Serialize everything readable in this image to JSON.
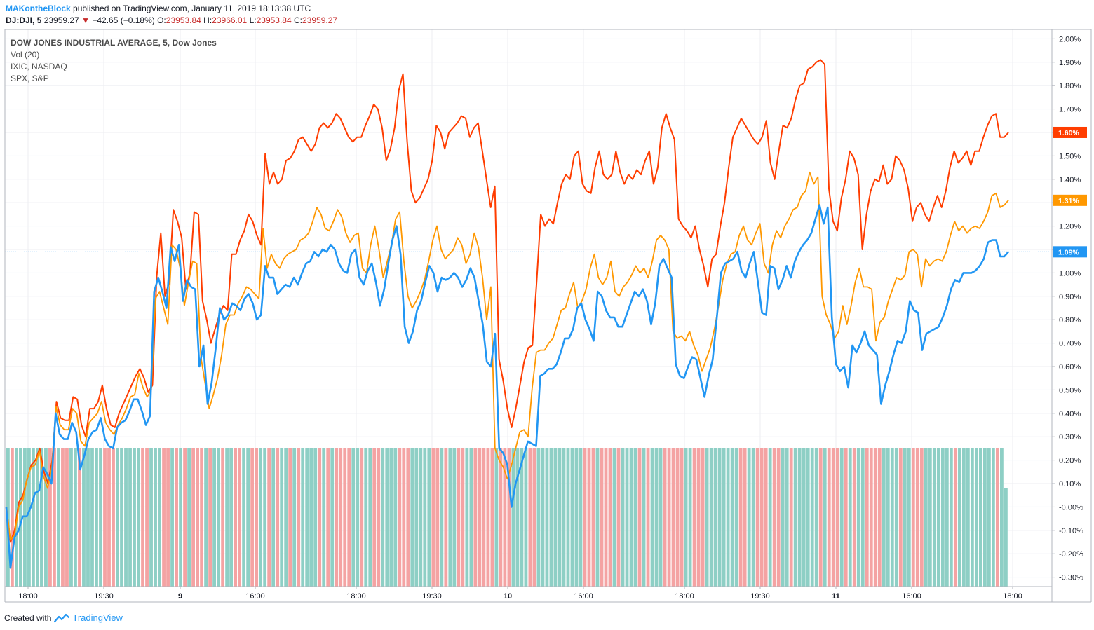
{
  "header": {
    "author": "MAKontheBlock",
    "published_text": "published on TradingView.com, January 11, 2019 18:13:38 UTC",
    "symbol": "DJ:DJI, 5",
    "last": "23959.27",
    "arrow": "▼",
    "change": "−42.65 (−0.18%)",
    "o_label": "O:",
    "o_value": "23953.84",
    "h_label": "H:",
    "h_value": "23966.01",
    "l_label": "L:",
    "l_value": "23953.84",
    "c_label": "C:",
    "c_value": "23959.27"
  },
  "legend": {
    "main": "DOW JONES INDUSTRIAL AVERAGE, 5, Dow Jones",
    "vol": "Vol (20)",
    "ixic": "IXIC, NASDAQ",
    "spx": "SPX, S&P"
  },
  "footer": {
    "created_with": "Created with",
    "brand": "TradingView"
  },
  "colors": {
    "dow": "#2196f3",
    "nasdaq": "#ff3d00",
    "spx": "#ff9800",
    "vol_up": "#8ecfc5",
    "vol_down": "#f4a3a3",
    "grid": "#eceef2",
    "axis": "#b2b5be"
  },
  "chart_data": {
    "type": "line",
    "y_unit": "%",
    "ylim": [
      -0.34,
      2.04
    ],
    "y_ticks": [
      "2.00%",
      "1.90%",
      "1.80%",
      "1.70%",
      "1.60%",
      "1.50%",
      "1.40%",
      "1.30%",
      "1.20%",
      "1.10%",
      "1.00%",
      "0.90%",
      "0.80%",
      "0.70%",
      "0.60%",
      "0.50%",
      "0.40%",
      "0.30%",
      "0.20%",
      "0.10%",
      "-0.00%",
      "-0.10%",
      "-0.20%",
      "-0.30%"
    ],
    "x_ticks": [
      {
        "label": "18:00",
        "bold": false
      },
      {
        "label": "19:30",
        "bold": false
      },
      {
        "label": "9",
        "bold": true
      },
      {
        "label": "16:00",
        "bold": false
      },
      {
        "label": "18:00",
        "bold": false
      },
      {
        "label": "19:30",
        "bold": false
      },
      {
        "label": "10",
        "bold": true
      },
      {
        "label": "16:00",
        "bold": false
      },
      {
        "label": "18:00",
        "bold": false
      },
      {
        "label": "19:30",
        "bold": false
      },
      {
        "label": "11",
        "bold": true
      },
      {
        "label": "16:00",
        "bold": false
      },
      {
        "label": "18:00",
        "bold": false
      }
    ],
    "grid": true,
    "price_labels": [
      {
        "series": "nasdaq",
        "text": "1.60%",
        "value": 1.6
      },
      {
        "series": "spx",
        "text": "1.31%",
        "value": 1.31
      },
      {
        "series": "dow",
        "text": "1.09%",
        "value": 1.09
      }
    ],
    "volume_bar_count": 238,
    "series": [
      {
        "name": "IXIC",
        "key": "nasdaq",
        "values": [
          0.0,
          -0.15,
          -0.1,
          0.02,
          0.05,
          0.12,
          0.18,
          0.2,
          0.25,
          0.15,
          0.1,
          0.2,
          0.45,
          0.38,
          0.37,
          0.37,
          0.47,
          0.46,
          0.35,
          0.3,
          0.42,
          0.42,
          0.45,
          0.52,
          0.42,
          0.35,
          0.34,
          0.4,
          0.44,
          0.48,
          0.52,
          0.56,
          0.59,
          0.55,
          0.49,
          0.52,
          0.98,
          1.17,
          0.9,
          0.96,
          1.27,
          1.22,
          1.15,
          0.93,
          1.0,
          1.26,
          1.25,
          0.88,
          0.8,
          0.7,
          0.76,
          0.82,
          0.86,
          0.84,
          1.08,
          1.08,
          1.14,
          1.18,
          1.25,
          1.22,
          1.16,
          1.12,
          1.51,
          1.38,
          1.43,
          1.38,
          1.4,
          1.48,
          1.49,
          1.52,
          1.57,
          1.58,
          1.55,
          1.52,
          1.55,
          1.62,
          1.64,
          1.62,
          1.64,
          1.68,
          1.66,
          1.62,
          1.58,
          1.56,
          1.58,
          1.58,
          1.63,
          1.67,
          1.72,
          1.7,
          1.62,
          1.48,
          1.53,
          1.62,
          1.78,
          1.85,
          1.56,
          1.35,
          1.3,
          1.32,
          1.36,
          1.4,
          1.48,
          1.63,
          1.6,
          1.53,
          1.6,
          1.62,
          1.64,
          1.67,
          1.66,
          1.58,
          1.62,
          1.64,
          1.52,
          1.4,
          1.28,
          1.37,
          0.63,
          0.54,
          0.42,
          0.34,
          0.42,
          0.52,
          0.62,
          0.68,
          0.69,
          0.96,
          1.25,
          1.2,
          1.23,
          1.21,
          1.3,
          1.38,
          1.42,
          1.4,
          1.5,
          1.52,
          1.38,
          1.35,
          1.34,
          1.45,
          1.52,
          1.42,
          1.4,
          1.42,
          1.52,
          1.43,
          1.38,
          1.42,
          1.4,
          1.44,
          1.42,
          1.48,
          1.52,
          1.38,
          1.45,
          1.62,
          1.68,
          1.62,
          1.57,
          1.23,
          1.2,
          1.18,
          1.15,
          1.2,
          1.1,
          1.03,
          0.94,
          1.06,
          1.08,
          1.2,
          1.3,
          1.45,
          1.58,
          1.62,
          1.66,
          1.63,
          1.6,
          1.57,
          1.55,
          1.58,
          1.65,
          1.47,
          1.4,
          1.52,
          1.63,
          1.62,
          1.66,
          1.74,
          1.8,
          1.81,
          1.87,
          1.88,
          1.9,
          1.91,
          1.89,
          1.36,
          1.22,
          1.18,
          1.32,
          1.4,
          1.52,
          1.49,
          1.42,
          1.1,
          1.25,
          1.35,
          1.4,
          1.39,
          1.46,
          1.38,
          1.4,
          1.5,
          1.48,
          1.44,
          1.36,
          1.22,
          1.28,
          1.3,
          1.25,
          1.22,
          1.28,
          1.33,
          1.28,
          1.35,
          1.45,
          1.52,
          1.47,
          1.49,
          1.52,
          1.46,
          1.52,
          1.52,
          1.58,
          1.63,
          1.67,
          1.68,
          1.58,
          1.58,
          1.6
        ]
      },
      {
        "name": "SPX",
        "key": "spx",
        "values": [
          0.0,
          -0.14,
          -0.12,
          0.0,
          0.03,
          0.12,
          0.17,
          0.18,
          0.24,
          0.13,
          0.08,
          0.17,
          0.43,
          0.35,
          0.33,
          0.33,
          0.42,
          0.4,
          0.28,
          0.26,
          0.36,
          0.38,
          0.4,
          0.45,
          0.36,
          0.33,
          0.31,
          0.35,
          0.38,
          0.42,
          0.47,
          0.48,
          0.57,
          0.51,
          0.47,
          0.5,
          0.89,
          0.92,
          0.85,
          0.78,
          1.12,
          1.1,
          1.02,
          0.86,
          0.96,
          1.05,
          1.04,
          0.64,
          0.53,
          0.42,
          0.48,
          0.55,
          0.65,
          0.78,
          0.82,
          0.82,
          0.87,
          0.9,
          0.94,
          0.93,
          0.91,
          0.89,
          1.19,
          1.02,
          1.08,
          1.04,
          1.02,
          1.06,
          1.08,
          1.09,
          1.1,
          1.14,
          1.15,
          1.17,
          1.22,
          1.28,
          1.25,
          1.19,
          1.18,
          1.22,
          1.27,
          1.24,
          1.17,
          1.13,
          1.16,
          1.17,
          1.02,
          1.0,
          1.12,
          1.2,
          1.1,
          0.98,
          1.05,
          1.12,
          1.23,
          1.26,
          1.05,
          0.9,
          0.85,
          0.88,
          0.92,
          0.97,
          1.05,
          1.14,
          1.2,
          1.1,
          1.06,
          1.08,
          1.1,
          1.15,
          1.12,
          1.04,
          1.08,
          1.17,
          1.11,
          0.98,
          0.8,
          0.94,
          0.25,
          0.2,
          0.17,
          0.12,
          0.18,
          0.25,
          0.32,
          0.33,
          0.3,
          0.51,
          0.66,
          0.67,
          0.67,
          0.7,
          0.72,
          0.78,
          0.84,
          0.85,
          0.91,
          0.96,
          0.85,
          0.88,
          0.93,
          1.02,
          1.08,
          0.98,
          0.95,
          0.98,
          1.05,
          0.92,
          0.9,
          0.94,
          0.96,
          0.99,
          1.03,
          1.0,
          1.02,
          0.98,
          1.05,
          1.14,
          1.16,
          1.14,
          1.1,
          0.75,
          0.72,
          0.73,
          0.71,
          0.75,
          0.69,
          0.65,
          0.58,
          0.63,
          0.68,
          0.76,
          0.86,
          0.97,
          1.04,
          1.08,
          1.09,
          1.16,
          1.2,
          1.14,
          1.12,
          1.17,
          1.21,
          1.04,
          1.0,
          1.12,
          1.18,
          1.15,
          1.2,
          1.23,
          1.27,
          1.28,
          1.33,
          1.35,
          1.43,
          1.38,
          1.41,
          0.9,
          0.82,
          0.78,
          0.72,
          0.75,
          0.86,
          0.78,
          0.86,
          0.96,
          1.02,
          0.94,
          0.94,
          0.93,
          0.71,
          0.79,
          0.81,
          0.88,
          0.93,
          0.98,
          0.97,
          0.99,
          1.09,
          1.1,
          1.08,
          0.94,
          1.06,
          1.03,
          1.05,
          1.06,
          1.05,
          1.09,
          1.16,
          1.22,
          1.18,
          1.2,
          1.17,
          1.19,
          1.2,
          1.19,
          1.22,
          1.26,
          1.33,
          1.34,
          1.28,
          1.29,
          1.31
        ]
      },
      {
        "name": "DJI",
        "key": "dow",
        "values": [
          0.0,
          -0.26,
          -0.13,
          -0.1,
          -0.04,
          -0.04,
          0.0,
          0.06,
          0.07,
          0.17,
          0.14,
          0.1,
          0.4,
          0.31,
          0.29,
          0.29,
          0.36,
          0.32,
          0.16,
          0.22,
          0.29,
          0.32,
          0.33,
          0.38,
          0.29,
          0.26,
          0.25,
          0.34,
          0.36,
          0.37,
          0.41,
          0.46,
          0.46,
          0.41,
          0.35,
          0.39,
          0.92,
          0.98,
          0.92,
          0.85,
          1.11,
          1.05,
          1.12,
          0.88,
          0.97,
          0.94,
          0.93,
          0.6,
          0.69,
          0.44,
          0.53,
          0.68,
          0.85,
          0.8,
          0.82,
          0.87,
          0.86,
          0.84,
          0.89,
          0.91,
          0.87,
          0.8,
          0.82,
          1.03,
          0.98,
          0.98,
          0.91,
          0.93,
          0.95,
          0.94,
          0.98,
          0.95,
          1.0,
          1.04,
          1.05,
          1.09,
          1.07,
          1.1,
          1.09,
          1.12,
          1.1,
          1.04,
          1.01,
          1.0,
          1.08,
          1.1,
          0.98,
          0.95,
          1.01,
          1.04,
          0.96,
          0.86,
          0.93,
          1.04,
          1.14,
          1.2,
          1.08,
          0.77,
          0.7,
          0.75,
          0.84,
          0.88,
          0.96,
          1.03,
          1.0,
          0.92,
          0.98,
          0.97,
          0.98,
          1.0,
          0.98,
          0.94,
          0.97,
          1.02,
          0.98,
          0.88,
          0.78,
          0.62,
          0.6,
          0.74,
          0.25,
          0.23,
          0.18,
          0.0,
          0.1,
          0.16,
          0.22,
          0.28,
          0.27,
          0.26,
          0.56,
          0.57,
          0.59,
          0.59,
          0.61,
          0.66,
          0.72,
          0.72,
          0.76,
          0.85,
          0.87,
          0.8,
          0.76,
          0.71,
          0.92,
          0.9,
          0.84,
          0.81,
          0.81,
          0.77,
          0.77,
          0.82,
          0.87,
          0.92,
          0.9,
          0.93,
          0.88,
          0.78,
          0.87,
          1.03,
          1.06,
          1.02,
          0.98,
          0.61,
          0.56,
          0.55,
          0.6,
          0.64,
          0.63,
          0.55,
          0.47,
          0.56,
          0.63,
          0.81,
          1.0,
          1.04,
          1.05,
          1.06,
          1.09,
          1.01,
          0.98,
          1.04,
          1.09,
          0.96,
          0.83,
          0.82,
          1.03,
          1.02,
          0.93,
          0.97,
          1.03,
          0.98,
          1.05,
          1.09,
          1.12,
          1.14,
          1.17,
          1.23,
          1.29,
          1.21,
          1.28,
          0.81,
          0.61,
          0.58,
          0.6,
          0.51,
          0.69,
          0.66,
          0.7,
          0.75,
          0.69,
          0.67,
          0.65,
          0.44,
          0.52,
          0.58,
          0.65,
          0.71,
          0.7,
          0.75,
          0.88,
          0.84,
          0.83,
          0.67,
          0.74,
          0.75,
          0.76,
          0.77,
          0.81,
          0.86,
          0.93,
          0.97,
          0.96,
          1.0,
          1.0,
          1.0,
          1.01,
          1.03,
          1.06,
          1.13,
          1.14,
          1.14,
          1.07,
          1.07,
          1.09
        ]
      }
    ]
  }
}
